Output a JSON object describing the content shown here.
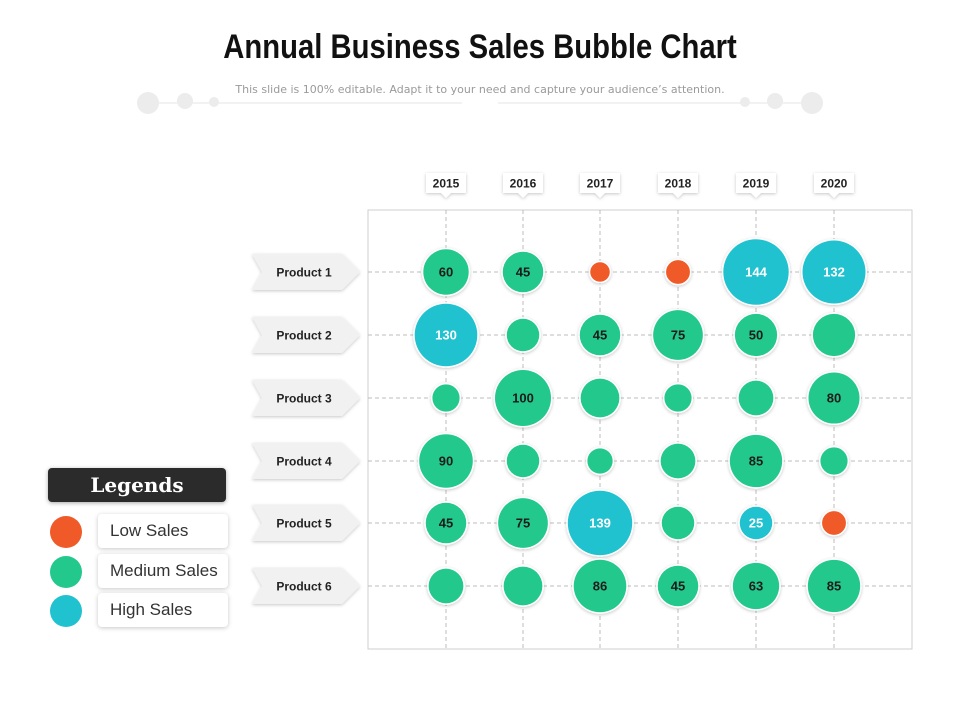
{
  "header": {
    "title": "Annual Business Sales Bubble Chart",
    "subtitle": "This slide is 100% editable. Adapt it to your need and capture your audience’s attention."
  },
  "legend": {
    "heading": "Legends",
    "items": [
      {
        "label": "Low Sales",
        "color": "#f05a28"
      },
      {
        "label": "Medium Sales",
        "color": "#23c98c"
      },
      {
        "label": "High Sales",
        "color": "#21c2d0"
      }
    ]
  },
  "colors": {
    "low": "#f05a28",
    "medium": "#23c98c",
    "high": "#21c2d0",
    "grid": "#bdbdbd",
    "row_label_bg": "#f1f1f1"
  },
  "chart_data": {
    "type": "scatter",
    "title": "Annual Business Sales Bubble Chart",
    "x_categories": [
      "2015",
      "2016",
      "2017",
      "2018",
      "2019",
      "2020"
    ],
    "y_categories": [
      "Product 1",
      "Product 2",
      "Product 3",
      "Product 4",
      "Product 5",
      "Product 6"
    ],
    "grid": true,
    "legend_position": "left",
    "points": [
      {
        "x": "2015",
        "y": "Product 1",
        "value": 60,
        "label": "60",
        "level": "medium"
      },
      {
        "x": "2016",
        "y": "Product 1",
        "value": 45,
        "label": "45",
        "level": "medium"
      },
      {
        "x": "2017",
        "y": "Product 1",
        "value": 5,
        "label": "",
        "level": "low"
      },
      {
        "x": "2018",
        "y": "Product 1",
        "value": 10,
        "label": "",
        "level": "low"
      },
      {
        "x": "2019",
        "y": "Product 1",
        "value": 144,
        "label": "144",
        "level": "high"
      },
      {
        "x": "2020",
        "y": "Product 1",
        "value": 132,
        "label": "132",
        "level": "high"
      },
      {
        "x": "2015",
        "y": "Product 2",
        "value": 130,
        "label": "130",
        "level": "high"
      },
      {
        "x": "2016",
        "y": "Product 2",
        "value": 25,
        "label": "",
        "level": "medium"
      },
      {
        "x": "2017",
        "y": "Product 2",
        "value": 45,
        "label": "45",
        "level": "medium"
      },
      {
        "x": "2018",
        "y": "Product 2",
        "value": 75,
        "label": "75",
        "level": "medium"
      },
      {
        "x": "2019",
        "y": "Product 2",
        "value": 50,
        "label": "50",
        "level": "medium"
      },
      {
        "x": "2020",
        "y": "Product 2",
        "value": 50,
        "label": "",
        "level": "medium"
      },
      {
        "x": "2015",
        "y": "Product 3",
        "value": 15,
        "label": "",
        "level": "medium"
      },
      {
        "x": "2016",
        "y": "Product 3",
        "value": 100,
        "label": "100",
        "level": "medium"
      },
      {
        "x": "2017",
        "y": "Product 3",
        "value": 40,
        "label": "",
        "level": "medium"
      },
      {
        "x": "2018",
        "y": "Product 3",
        "value": 15,
        "label": "",
        "level": "medium"
      },
      {
        "x": "2019",
        "y": "Product 3",
        "value": 30,
        "label": "",
        "level": "medium"
      },
      {
        "x": "2020",
        "y": "Product 3",
        "value": 80,
        "label": "80",
        "level": "medium"
      },
      {
        "x": "2015",
        "y": "Product 4",
        "value": 90,
        "label": "90",
        "level": "medium"
      },
      {
        "x": "2016",
        "y": "Product 4",
        "value": 25,
        "label": "",
        "level": "medium"
      },
      {
        "x": "2017",
        "y": "Product 4",
        "value": 12,
        "label": "",
        "level": "medium"
      },
      {
        "x": "2018",
        "y": "Product 4",
        "value": 30,
        "label": "",
        "level": "medium"
      },
      {
        "x": "2019",
        "y": "Product 4",
        "value": 85,
        "label": "85",
        "level": "medium"
      },
      {
        "x": "2020",
        "y": "Product 4",
        "value": 15,
        "label": "",
        "level": "medium"
      },
      {
        "x": "2015",
        "y": "Product 5",
        "value": 45,
        "label": "45",
        "level": "medium"
      },
      {
        "x": "2016",
        "y": "Product 5",
        "value": 75,
        "label": "75",
        "level": "medium"
      },
      {
        "x": "2017",
        "y": "Product 5",
        "value": 139,
        "label": "139",
        "level": "high"
      },
      {
        "x": "2018",
        "y": "Product 5",
        "value": 25,
        "label": "",
        "level": "medium"
      },
      {
        "x": "2019",
        "y": "Product 5",
        "value": 25,
        "label": "25",
        "level": "high"
      },
      {
        "x": "2020",
        "y": "Product 5",
        "value": 10,
        "label": "",
        "level": "low"
      },
      {
        "x": "2015",
        "y": "Product 6",
        "value": 30,
        "label": "",
        "level": "medium"
      },
      {
        "x": "2016",
        "y": "Product 6",
        "value": 40,
        "label": "",
        "level": "medium"
      },
      {
        "x": "2017",
        "y": "Product 6",
        "value": 86,
        "label": "86",
        "level": "medium"
      },
      {
        "x": "2018",
        "y": "Product 6",
        "value": 45,
        "label": "45",
        "level": "medium"
      },
      {
        "x": "2019",
        "y": "Product 6",
        "value": 63,
        "label": "63",
        "level": "medium"
      },
      {
        "x": "2020",
        "y": "Product 6",
        "value": 85,
        "label": "85",
        "level": "medium"
      }
    ]
  }
}
